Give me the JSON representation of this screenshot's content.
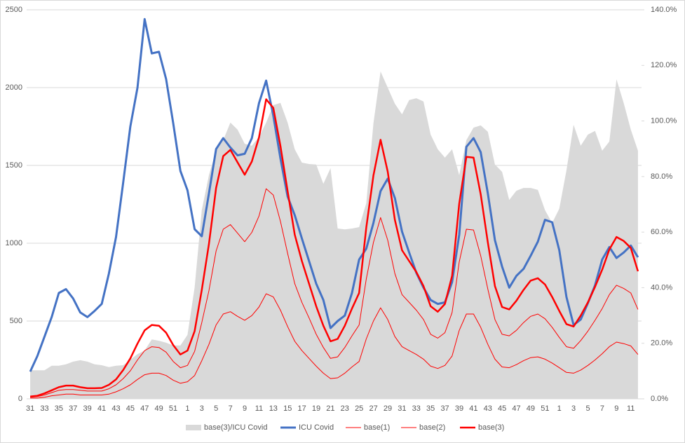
{
  "chart_data": {
    "type": "line",
    "categories": [
      "31",
      null,
      "33",
      null,
      "35",
      null,
      "37",
      null,
      "39",
      null,
      "41",
      null,
      "43",
      null,
      "45",
      null,
      "47",
      null,
      "49",
      null,
      "51",
      null,
      "1",
      null,
      "3",
      null,
      "5",
      null,
      "7",
      null,
      "9",
      null,
      "11",
      null,
      "13",
      null,
      "15",
      null,
      "17",
      null,
      "19",
      null,
      "21",
      null,
      "23",
      null,
      "25",
      null,
      "27",
      null,
      "29",
      null,
      "31",
      null,
      "33",
      null,
      "35",
      null,
      "37",
      null,
      "39",
      null,
      "41",
      null,
      "43",
      null,
      "45",
      null,
      "47",
      null,
      "49",
      null,
      "51",
      null,
      "1",
      null,
      "3",
      null,
      "5",
      null,
      "7",
      null,
      "9",
      null,
      "11",
      null
    ],
    "series": [
      {
        "name": "base(3)/ICU Covid",
        "type": "area",
        "axis": "y2",
        "color": "#d9d9d9",
        "values": [
          10.3,
          10.3,
          10.3,
          11.9,
          11.9,
          12.4,
          13.4,
          13.9,
          13.4,
          12.4,
          12.1,
          11.4,
          11.9,
          12.1,
          14.1,
          16.1,
          17.4,
          21.4,
          20.9,
          20.2,
          19.2,
          19.2,
          23.0,
          40.1,
          67.9,
          80.5,
          89.3,
          93.1,
          99.4,
          96.9,
          91.8,
          91.1,
          94.3,
          99.4,
          105.7,
          106.5,
          99.4,
          89.8,
          85.0,
          84.5,
          84.3,
          77.4,
          83.0,
          61.3,
          61.0,
          61.3,
          61.8,
          70.4,
          99.1,
          117.8,
          112.0,
          106.2,
          102.4,
          107.5,
          108.2,
          107.0,
          95.1,
          89.8,
          86.8,
          89.8,
          80.5,
          93.1,
          97.6,
          98.4,
          96.1,
          84.3,
          81.7,
          71.6,
          74.9,
          75.9,
          75.9,
          75.2,
          67.9,
          63.3,
          68.4,
          82.2,
          98.6,
          91.1,
          95.1,
          96.4,
          89.3,
          92.6,
          115.0,
          106.5,
          96.9,
          89.3
        ]
      },
      {
        "name": "ICU Covid",
        "type": "line",
        "color": "#4472c4",
        "width": 3,
        "values": [
          175,
          275,
          400,
          525,
          680,
          705,
          645,
          555,
          525,
          565,
          610,
          805,
          1040,
          1390,
          1750,
          2000,
          2440,
          2220,
          2230,
          2055,
          1770,
          1465,
          1340,
          1090,
          1045,
          1320,
          1605,
          1675,
          1615,
          1565,
          1575,
          1675,
          1900,
          2045,
          1820,
          1545,
          1300,
          1180,
          1030,
          885,
          740,
          635,
          455,
          500,
          535,
          680,
          895,
          965,
          1130,
          1335,
          1415,
          1290,
          1075,
          940,
          810,
          715,
          635,
          610,
          620,
          750,
          1055,
          1620,
          1675,
          1585,
          1320,
          1020,
          850,
          715,
          790,
          835,
          920,
          1010,
          1150,
          1135,
          955,
          655,
          475,
          510,
          615,
          730,
          895,
          975,
          905,
          940,
          985,
          910
        ]
      },
      {
        "name": "base(1)",
        "type": "line",
        "color": "#ff0000",
        "width": 1,
        "values": [
          5,
          5,
          10,
          20,
          25,
          30,
          30,
          25,
          25,
          25,
          25,
          30,
          45,
          65,
          90,
          125,
          155,
          165,
          165,
          150,
          120,
          100,
          110,
          150,
          245,
          350,
          475,
          545,
          560,
          530,
          505,
          535,
          590,
          675,
          655,
          570,
          465,
          370,
          310,
          260,
          210,
          165,
          130,
          135,
          165,
          205,
          240,
          385,
          500,
          585,
          510,
          400,
          335,
          310,
          285,
          255,
          210,
          195,
          215,
          275,
          440,
          545,
          545,
          460,
          350,
          255,
          205,
          200,
          220,
          245,
          265,
          270,
          255,
          230,
          200,
          170,
          165,
          185,
          215,
          250,
          290,
          335,
          365,
          355,
          340,
          285
        ]
      },
      {
        "name": "base(2)",
        "type": "line",
        "color": "#ff0000",
        "width": 1,
        "values": [
          10,
          15,
          25,
          40,
          55,
          60,
          60,
          55,
          50,
          50,
          50,
          65,
          90,
          130,
          180,
          250,
          310,
          335,
          330,
          300,
          240,
          200,
          215,
          305,
          490,
          695,
          950,
          1090,
          1120,
          1065,
          1010,
          1070,
          1175,
          1350,
          1310,
          1140,
          935,
          740,
          620,
          520,
          415,
          330,
          260,
          270,
          330,
          405,
          475,
          770,
          1005,
          1165,
          1020,
          805,
          670,
          620,
          570,
          510,
          415,
          390,
          425,
          555,
          880,
          1090,
          1085,
          920,
          705,
          510,
          415,
          405,
          440,
          490,
          530,
          545,
          515,
          460,
          395,
          335,
          325,
          375,
          435,
          505,
          580,
          670,
          730,
          710,
          680,
          575
        ]
      },
      {
        "name": "base(3)",
        "type": "line",
        "color": "#ff0000",
        "width": 2.5,
        "values": [
          15,
          20,
          35,
          55,
          75,
          85,
          85,
          75,
          68,
          68,
          70,
          90,
          125,
          185,
          260,
          355,
          440,
          475,
          470,
          425,
          345,
          285,
          310,
          435,
          700,
          995,
          1355,
          1560,
          1600,
          1520,
          1440,
          1525,
          1680,
          1925,
          1870,
          1625,
          1335,
          1055,
          885,
          740,
          595,
          470,
          370,
          385,
          470,
          580,
          680,
          1100,
          1435,
          1665,
          1460,
          1150,
          955,
          885,
          815,
          725,
          595,
          560,
          610,
          790,
          1255,
          1555,
          1550,
          1315,
          1005,
          725,
          590,
          575,
          630,
          700,
          760,
          775,
          735,
          655,
          565,
          480,
          465,
          535,
          620,
          720,
          830,
          960,
          1040,
          1015,
          970,
          820
        ]
      }
    ],
    "ylim": [
      0,
      2500
    ],
    "yticks": [
      0,
      500,
      1000,
      1500,
      2000,
      2500
    ],
    "y2lim": [
      0,
      140
    ],
    "y2ticks": [
      {
        "value": 0,
        "label": "0.0%"
      },
      {
        "value": 20,
        "label": "20.0%"
      },
      {
        "value": 40,
        "label": "40.0%"
      },
      {
        "value": 60,
        "label": "60.0%"
      },
      {
        "value": 80,
        "label": "80.0%"
      },
      {
        "value": 100,
        "label": "100.0%"
      },
      {
        "value": 120,
        "label": "120.0%"
      },
      {
        "value": 140,
        "label": "140.0%"
      }
    ],
    "grid": true,
    "legend": "bottom"
  }
}
